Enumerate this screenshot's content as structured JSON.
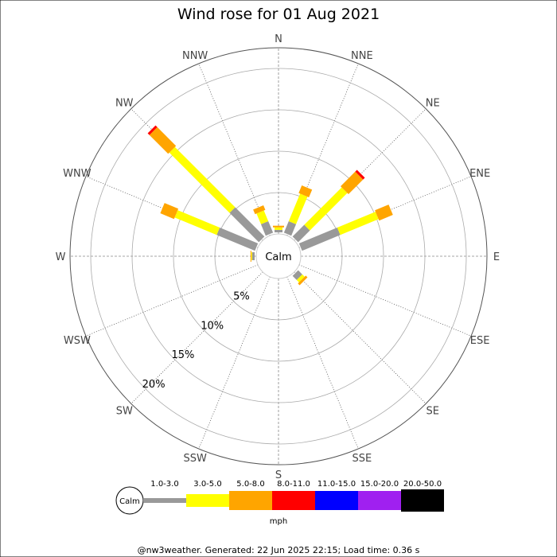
{
  "chart_data": {
    "type": "wind-rose",
    "title": "Wind rose for 01 Aug 2021",
    "directions": [
      "N",
      "NNE",
      "NE",
      "ENE",
      "E",
      "ESE",
      "SE",
      "SSE",
      "S",
      "SSW",
      "SW",
      "WSW",
      "W",
      "WNW",
      "NW",
      "NNW"
    ],
    "radial_labels": [
      "5%",
      "10%",
      "15%",
      "20%"
    ],
    "radial_ticks": [
      5,
      10,
      15,
      20
    ],
    "radial_max": 22.5,
    "calm_label": "Calm",
    "unit": "mph",
    "bins": [
      {
        "label": "1.0-3.0",
        "color": "#999999"
      },
      {
        "label": "3.0-5.0",
        "color": "#ffff00"
      },
      {
        "label": "5.0-8.0",
        "color": "#ffa500"
      },
      {
        "label": "8.0-11.0",
        "color": "#ff0000"
      },
      {
        "label": "11.0-15.0",
        "color": "#0000ff"
      },
      {
        "label": "15.0-20.0",
        "color": "#a020f0"
      },
      {
        "label": "20.0-50.0",
        "color": "#000000"
      }
    ],
    "series": [
      {
        "direction": "N",
        "values": [
          0.3,
          0.3,
          0.2,
          0,
          0,
          0,
          0
        ]
      },
      {
        "direction": "NNE",
        "values": [
          1.5,
          3.6,
          1.0,
          0,
          0,
          0,
          0
        ]
      },
      {
        "direction": "NE",
        "values": [
          2.0,
          6.4,
          2.5,
          0.3,
          0,
          0,
          0
        ]
      },
      {
        "direction": "ENE",
        "values": [
          5.0,
          5.0,
          1.8,
          0,
          0,
          0,
          0
        ]
      },
      {
        "direction": "E",
        "values": [
          0,
          0,
          0,
          0,
          0,
          0,
          0
        ]
      },
      {
        "direction": "ESE",
        "values": [
          0,
          0,
          0,
          0,
          0,
          0,
          0
        ]
      },
      {
        "direction": "SE",
        "values": [
          0.7,
          0.4,
          0.3,
          0,
          0,
          0,
          0
        ]
      },
      {
        "direction": "SSE",
        "values": [
          0,
          0,
          0,
          0,
          0,
          0,
          0
        ]
      },
      {
        "direction": "S",
        "values": [
          0,
          0,
          0,
          0,
          0,
          0,
          0
        ]
      },
      {
        "direction": "SSW",
        "values": [
          0,
          0,
          0,
          0,
          0,
          0,
          0
        ]
      },
      {
        "direction": "SW",
        "values": [
          0,
          0,
          0,
          0,
          0,
          0,
          0
        ]
      },
      {
        "direction": "WSW",
        "values": [
          0,
          0,
          0,
          0,
          0,
          0,
          0
        ]
      },
      {
        "direction": "W",
        "values": [
          0.3,
          0.1,
          0.1,
          0,
          0,
          0,
          0
        ]
      },
      {
        "direction": "WNW",
        "values": [
          5.0,
          5.5,
          1.8,
          0,
          0,
          0,
          0
        ]
      },
      {
        "direction": "NW",
        "values": [
          5.0,
          10.3,
          3.2,
          0.3,
          0,
          0,
          0
        ]
      },
      {
        "direction": "NNW",
        "values": [
          1.5,
          1.4,
          0.6,
          0,
          0,
          0,
          0
        ]
      }
    ],
    "grid": true
  },
  "footer": "@nw3weather. Generated: 22 Jun 2025 22:15; Load time: 0.36 s"
}
